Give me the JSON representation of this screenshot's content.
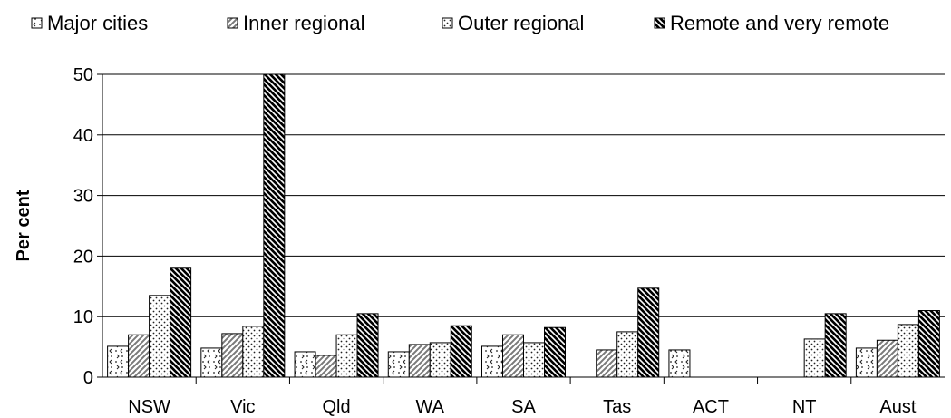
{
  "chart_data": {
    "type": "bar",
    "title": "",
    "xlabel": "",
    "ylabel": "Per cent",
    "ylim": [
      0,
      50
    ],
    "yticks": [
      "0",
      "10",
      "20",
      "30",
      "40",
      "50"
    ],
    "grid": "horizontal",
    "legend_position": "top",
    "categories": [
      "NSW",
      "Vic",
      "Qld",
      "WA",
      "SA",
      "Tas",
      "ACT",
      "NT",
      "Aust"
    ],
    "series": [
      {
        "name": "Major cities",
        "pattern": "dots-chevron",
        "values": [
          5.1,
          4.8,
          4.2,
          4.2,
          5.1,
          null,
          4.5,
          null,
          4.8
        ]
      },
      {
        "name": "Inner regional",
        "pattern": "diagonal-light",
        "values": [
          7.0,
          7.2,
          3.6,
          5.4,
          7.0,
          4.5,
          null,
          null,
          6.1
        ]
      },
      {
        "name": "Outer regional",
        "pattern": "dots",
        "values": [
          13.5,
          8.4,
          7.0,
          5.7,
          5.7,
          7.5,
          null,
          6.3,
          8.7
        ]
      },
      {
        "name": "Remote and very remote",
        "pattern": "diagonal-dark",
        "values": [
          18.0,
          50.0,
          10.5,
          8.5,
          8.2,
          14.7,
          null,
          10.5,
          11.0
        ]
      }
    ]
  }
}
